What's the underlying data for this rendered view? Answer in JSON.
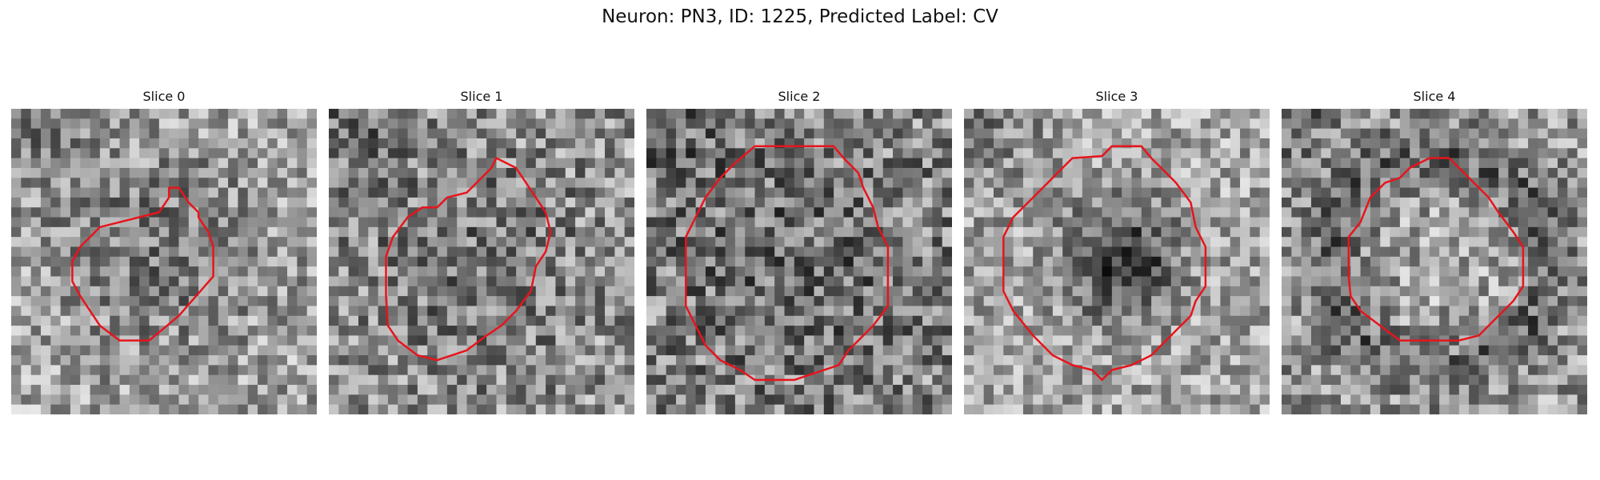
{
  "figure": {
    "title": "Neuron: PN3, ID: 1225, Predicted Label: CV"
  },
  "panels": [
    {
      "title": "Slice 0"
    },
    {
      "title": "Slice 1"
    },
    {
      "title": "Slice 2"
    },
    {
      "title": "Slice 3"
    },
    {
      "title": "Slice 4"
    }
  ],
  "colors": {
    "contour": "#e8141c",
    "background": "#ffffff"
  }
}
